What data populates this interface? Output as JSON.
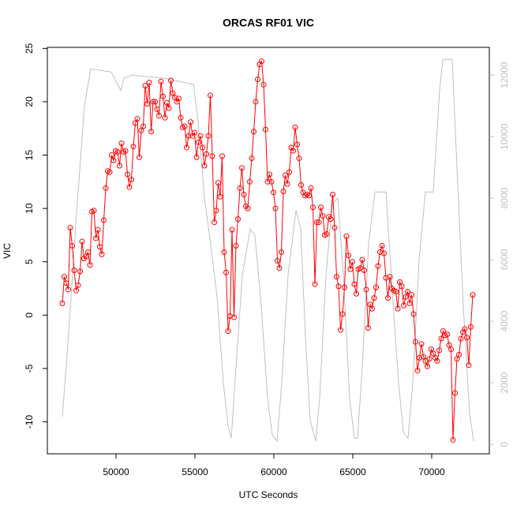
{
  "chart_data": {
    "type": "line",
    "title": "ORCAS RF01 VIC",
    "x_label": "UTC Seconds",
    "y_label": "VIC",
    "xlim": [
      45650,
      73650
    ],
    "ylim": [
      -13,
      25.1
    ],
    "y2lim": [
      -308,
      12900
    ],
    "xticks": [
      50000,
      55000,
      60000,
      65000,
      70000
    ],
    "yticks": [
      -10,
      -5,
      0,
      5,
      10,
      15,
      20,
      25
    ],
    "y2ticks": [
      0,
      2000,
      4000,
      6000,
      8000,
      10000,
      12000
    ],
    "y2_color": "#bfbfbf",
    "series": [
      {
        "color": "#bfbfbf",
        "axis": "y2",
        "x": [
          46600,
          47000,
          47500,
          48000,
          48400,
          49700,
          50000,
          50300,
          50500,
          51000,
          53000,
          54900,
          55200,
          55600,
          56000,
          56400,
          56800,
          57100,
          57300,
          57600,
          58000,
          58500,
          58800,
          59200,
          59600,
          59900,
          60200,
          60500,
          60900,
          61400,
          61700,
          62000,
          62300,
          62650,
          62900,
          63300,
          63700,
          64050,
          64400,
          64800,
          65100,
          65300,
          65600,
          66000,
          66400,
          67100,
          67500,
          67900,
          68200,
          68500,
          68800,
          69200,
          69600,
          70100,
          70500,
          70700,
          71300,
          71600,
          72000,
          72400,
          72650
        ],
        "values": [
          900,
          3600,
          7500,
          11000,
          12200,
          12100,
          11800,
          11500,
          11900,
          12000,
          11900,
          11700,
          10500,
          8000,
          6500,
          4800,
          2000,
          600,
          200,
          2500,
          5500,
          7000,
          6800,
          4500,
          1500,
          300,
          100,
          2000,
          5500,
          7600,
          7000,
          3500,
          800,
          100,
          1500,
          5500,
          7800,
          8000,
          5500,
          1500,
          200,
          200,
          2500,
          6500,
          8200,
          8200,
          5000,
          2000,
          400,
          200,
          2000,
          6000,
          8200,
          8200,
          11500,
          12500,
          12500,
          9000,
          4500,
          1000,
          100
        ]
      },
      {
        "color": "#ff0000",
        "axis": "y",
        "markers": true,
        "x": [
          46600,
          46725,
          46850,
          46975,
          47100,
          47225,
          47350,
          47475,
          47600,
          47725,
          47850,
          47975,
          48100,
          48225,
          48350,
          48475,
          48600,
          48725,
          48850,
          48975,
          49100,
          49225,
          49350,
          49475,
          49600,
          49725,
          49850,
          49975,
          50100,
          50225,
          50350,
          50475,
          50600,
          50725,
          50850,
          50975,
          51100,
          51225,
          51350,
          51475,
          51600,
          51725,
          51850,
          51975,
          52100,
          52225,
          52350,
          52475,
          52600,
          52725,
          52850,
          52975,
          53100,
          53225,
          53350,
          53475,
          53600,
          53725,
          53850,
          53975,
          54100,
          54225,
          54350,
          54475,
          54600,
          54725,
          54850,
          54975,
          55100,
          55225,
          55350,
          55475,
          55600,
          55725,
          55850,
          55975,
          56100,
          56225,
          56350,
          56475,
          56600,
          56725,
          56850,
          56975,
          57100,
          57225,
          57350,
          57475,
          57600,
          57725,
          57850,
          57975,
          58100,
          58225,
          58350,
          58475,
          58600,
          58725,
          58850,
          58975,
          59100,
          59225,
          59350,
          59475,
          59600,
          59725,
          59850,
          59975,
          60100,
          60225,
          60350,
          60475,
          60600,
          60725,
          60850,
          60975,
          61100,
          61225,
          61350,
          61475,
          61600,
          61725,
          61850,
          61975,
          62100,
          62225,
          62350,
          62475,
          62600,
          62725,
          62850,
          62975,
          63100,
          63225,
          63350,
          63475,
          63600,
          63725,
          63850,
          63975,
          64100,
          64225,
          64350,
          64475,
          64600,
          64725,
          64850,
          64975,
          65100,
          65225,
          65350,
          65475,
          65600,
          65725,
          65850,
          65975,
          66100,
          66225,
          66350,
          66475,
          66600,
          66725,
          66850,
          66975,
          67100,
          67225,
          67350,
          67475,
          67600,
          67725,
          67850,
          67975,
          68100,
          68225,
          68350,
          68475,
          68600,
          68725,
          68850,
          68975,
          69100,
          69225,
          69350,
          69475,
          69600,
          69725,
          69850,
          69975,
          70100,
          70225,
          70350,
          70475,
          70600,
          70725,
          70850,
          70975,
          71100,
          71225,
          71350,
          71475,
          71600,
          71725,
          71850,
          71975,
          72100,
          72225,
          72350,
          72475,
          72600
        ],
        "values": [
          1.1,
          3.6,
          3.0,
          2.4,
          8.2,
          6.5,
          4.2,
          2.3,
          2.8,
          4.1,
          6.9,
          5.3,
          5.5,
          5.9,
          4.7,
          9.7,
          9.8,
          7.2,
          8.0,
          6.4,
          5.7,
          8.9,
          11.9,
          13.5,
          13.4,
          15.0,
          14.5,
          15.4,
          15.3,
          14.0,
          16.1,
          15.3,
          15.4,
          13.2,
          12.0,
          12.7,
          15.8,
          18.0,
          18.4,
          14.8,
          17.3,
          17.7,
          21.5,
          19.8,
          21.8,
          17.2,
          20.0,
          20.0,
          19.3,
          18.7,
          21.9,
          20.5,
          18.5,
          19.9,
          19.4,
          22.0,
          20.8,
          20.4,
          20.0,
          20.3,
          18.5,
          17.6,
          17.7,
          15.7,
          16.8,
          18.1,
          16.8,
          17.1,
          14.8,
          16.2,
          16.8,
          15.7,
          14.0,
          15.1,
          16.8,
          20.6,
          14.9,
          8.7,
          9.8,
          12.4,
          11.1,
          14.9,
          5.9,
          4.0,
          -1.5,
          -0.1,
          8.0,
          -0.2,
          6.5,
          9.0,
          11.9,
          13.8,
          11.3,
          10.2,
          10.0,
          12.5,
          14.7,
          17.2,
          20.0,
          22.1,
          23.5,
          23.8,
          21.6,
          17.4,
          12.5,
          13.2,
          12.5,
          11.5,
          10.0,
          5.1,
          4.4,
          5.9,
          11.6,
          13.1,
          12.3,
          13.4,
          15.7,
          15.4,
          17.6,
          16.0,
          14.7,
          12.2,
          11.5,
          11.2,
          11.3,
          11.2,
          11.9,
          10.1,
          2.9,
          8.7,
          8.7,
          10.1,
          9.3,
          7.5,
          7.6,
          9.2,
          9.0,
          11.3,
          8.2,
          3.6,
          2.7,
          -1.4,
          0.1,
          2.6,
          7.4,
          5.6,
          4.3,
          5.0,
          2.9,
          2.0,
          4.3,
          4.4,
          5.2,
          4.2,
          2.4,
          -1.2,
          1.0,
          0.6,
          1.6,
          2.6,
          4.6,
          5.9,
          6.5,
          5.8,
          3.5,
          1.6,
          3.6,
          2.5,
          2.3,
          2.2,
          0.6,
          3.1,
          2.7,
          0.9,
          1.7,
          2.2,
          1.1,
          1.9,
          0.1,
          -2.5,
          -5.2,
          -4.0,
          -2.7,
          -3.9,
          -4.3,
          -4.8,
          -4.1,
          -3.2,
          -3.6,
          -4.0,
          -4.3,
          -3.3,
          -2.2,
          -1.5,
          -1.9,
          -1.8,
          -2.8,
          -3.2,
          -11.7,
          -7.3,
          -4.1,
          -3.7,
          -2.2,
          -1.6,
          -1.3,
          -2.1,
          -4.7,
          -1.1,
          1.9
        ]
      }
    ]
  }
}
